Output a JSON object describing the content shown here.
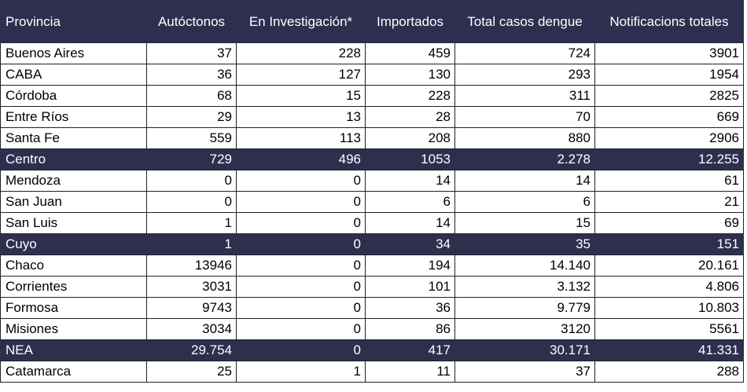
{
  "table": {
    "headers": [
      "Provincia",
      "Autóctonos",
      "En Investigación*",
      "Importados",
      "Total casos dengue",
      "Notificacions totales"
    ],
    "rows": [
      {
        "cells": [
          "Buenos Aires",
          "37",
          "228",
          "459",
          "724",
          "3901"
        ],
        "total": false
      },
      {
        "cells": [
          "CABA",
          "36",
          "127",
          "130",
          "293",
          "1954"
        ],
        "total": false
      },
      {
        "cells": [
          "Córdoba",
          "68",
          "15",
          "228",
          "311",
          "2825"
        ],
        "total": false
      },
      {
        "cells": [
          "Entre Ríos",
          "29",
          "13",
          "28",
          "70",
          "669"
        ],
        "total": false
      },
      {
        "cells": [
          "Santa Fe",
          "559",
          "113",
          "208",
          "880",
          "2906"
        ],
        "total": false
      },
      {
        "cells": [
          "Centro",
          "729",
          "496",
          "1053",
          "2.278",
          "12.255"
        ],
        "total": true
      },
      {
        "cells": [
          "Mendoza",
          "0",
          "0",
          "14",
          "14",
          "61"
        ],
        "total": false
      },
      {
        "cells": [
          "San Juan",
          "0",
          "0",
          "6",
          "6",
          "21"
        ],
        "total": false
      },
      {
        "cells": [
          "San Luis",
          "1",
          "0",
          "14",
          "15",
          "69"
        ],
        "total": false
      },
      {
        "cells": [
          "Cuyo",
          "1",
          "0",
          "34",
          "35",
          "151"
        ],
        "total": true
      },
      {
        "cells": [
          "Chaco",
          "13946",
          "0",
          "194",
          "14.140",
          "20.161"
        ],
        "total": false
      },
      {
        "cells": [
          "Corrientes",
          "3031",
          "0",
          "101",
          "3.132",
          "4.806"
        ],
        "total": false
      },
      {
        "cells": [
          "Formosa",
          "9743",
          "0",
          "36",
          "9.779",
          "10.803"
        ],
        "total": false
      },
      {
        "cells": [
          "Misiones",
          "3034",
          "0",
          "86",
          "3120",
          "5561"
        ],
        "total": false
      },
      {
        "cells": [
          "NEA",
          "29.754",
          "0",
          "417",
          "30.171",
          "41.331"
        ],
        "total": true
      },
      {
        "cells": [
          "Catamarca",
          "25",
          "1",
          "11",
          "37",
          "288"
        ],
        "total": false
      }
    ]
  },
  "colors": {
    "header_bg": "#2e2f4f",
    "header_text": "#ffffff",
    "border": "#222222"
  }
}
